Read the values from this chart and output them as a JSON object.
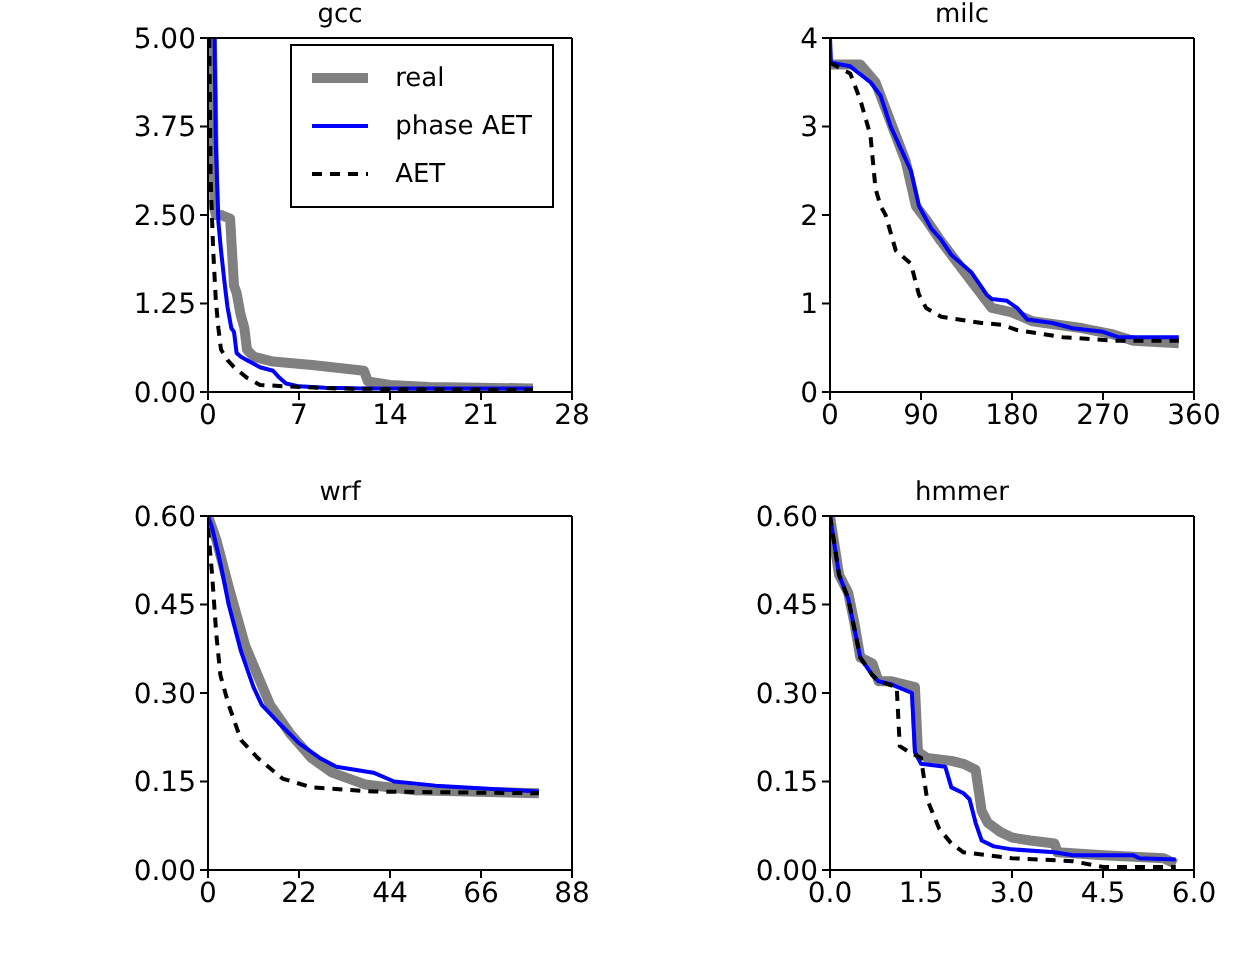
{
  "chart_data": [
    {
      "type": "line",
      "title": "gcc",
      "xlim": [
        0,
        28
      ],
      "xticks": [
        0,
        7,
        14,
        21,
        28
      ],
      "ylim": [
        0,
        5
      ],
      "yticks": [
        {
          "value": 0,
          "label": "0.00"
        },
        {
          "value": 1.25,
          "label": "1.25"
        },
        {
          "value": 2.5,
          "label": "2.50"
        },
        {
          "value": 3.75,
          "label": "3.75"
        },
        {
          "value": 5,
          "label": "5.00"
        }
      ],
      "legend": "top right",
      "marker": "none",
      "series": [
        {
          "name": "real",
          "color": "#808080",
          "line_style": "solid",
          "x": [
            0.3,
            0.5,
            0.6,
            1.0,
            1.7,
            2.0,
            2.2,
            2.5,
            2.8,
            3.0,
            3.5,
            5,
            8,
            12,
            12.3,
            14,
            17,
            25
          ],
          "values": [
            5,
            2.6,
            2.5,
            2.5,
            2.45,
            1.5,
            1.4,
            1.1,
            0.9,
            0.6,
            0.5,
            0.43,
            0.38,
            0.3,
            0.15,
            0.1,
            0.07,
            0.05
          ]
        },
        {
          "name": "phase AET",
          "color": "#0000ff",
          "line_style": "solid",
          "x": [
            0.5,
            0.6,
            0.8,
            1.0,
            1.3,
            1.5,
            1.8,
            2.0,
            2.2,
            2.5,
            3.0,
            4.0,
            5.0,
            5.5,
            6.0,
            7,
            9,
            12,
            25
          ],
          "values": [
            5,
            3.5,
            2.4,
            2.0,
            1.5,
            1.2,
            0.9,
            0.85,
            0.55,
            0.5,
            0.45,
            0.35,
            0.3,
            0.2,
            0.12,
            0.08,
            0.06,
            0.05,
            0.05
          ]
        },
        {
          "name": "AET",
          "color": "#000000",
          "line_style": "dashed",
          "x": [
            0.1,
            0.2,
            0.4,
            0.6,
            0.8,
            1.0,
            1.5,
            2,
            3,
            4,
            6,
            10,
            15,
            25
          ],
          "values": [
            5,
            3.0,
            2.0,
            1.3,
            0.9,
            0.6,
            0.45,
            0.35,
            0.2,
            0.1,
            0.08,
            0.05,
            0.04,
            0.03
          ]
        }
      ]
    },
    {
      "type": "line",
      "title": "milc",
      "xlim": [
        0,
        360
      ],
      "xticks": [
        0,
        90,
        180,
        270,
        360
      ],
      "ylim": [
        0,
        4
      ],
      "yticks": [
        0,
        1,
        2,
        3,
        4
      ],
      "marker": "none",
      "series": [
        {
          "color": "#808080",
          "line_style": "solid",
          "x": [
            0,
            30,
            45,
            55,
            65,
            75,
            85,
            95,
            110,
            130,
            150,
            160,
            180,
            200,
            250,
            280,
            300,
            345
          ],
          "values": [
            3.7,
            3.7,
            3.5,
            3.2,
            2.9,
            2.6,
            2.1,
            1.95,
            1.7,
            1.4,
            1.1,
            0.95,
            0.9,
            0.8,
            0.72,
            0.65,
            0.58,
            0.55
          ]
        },
        {
          "color": "#0000ff",
          "line_style": "solid",
          "x": [
            0,
            1,
            20,
            40,
            50,
            60,
            70,
            80,
            88,
            100,
            110,
            120,
            140,
            155,
            160,
            175,
            185,
            195,
            220,
            240,
            270,
            285,
            345
          ],
          "values": [
            4,
            3.72,
            3.68,
            3.5,
            3.35,
            3.0,
            2.75,
            2.5,
            2.1,
            1.85,
            1.72,
            1.55,
            1.35,
            1.1,
            1.05,
            1.03,
            0.95,
            0.82,
            0.78,
            0.72,
            0.68,
            0.62,
            0.62
          ]
        },
        {
          "color": "#000000",
          "line_style": "dashed",
          "x": [
            0,
            20,
            30,
            40,
            45,
            50,
            55,
            65,
            80,
            88,
            95,
            110,
            150,
            170,
            185,
            230,
            280,
            345
          ],
          "values": [
            3.72,
            3.6,
            3.3,
            2.9,
            2.3,
            2.1,
            2.0,
            1.6,
            1.45,
            1.1,
            0.95,
            0.85,
            0.78,
            0.76,
            0.7,
            0.62,
            0.58,
            0.58
          ]
        }
      ]
    },
    {
      "type": "line",
      "title": "wrf",
      "xlim": [
        0,
        88
      ],
      "xticks": [
        0,
        22,
        44,
        66,
        88
      ],
      "ylim": [
        0,
        0.6
      ],
      "yticks": [
        {
          "value": 0,
          "label": "0.00"
        },
        {
          "value": 0.15,
          "label": "0.15"
        },
        {
          "value": 0.3,
          "label": "0.30"
        },
        {
          "value": 0.45,
          "label": "0.45"
        },
        {
          "value": 0.6,
          "label": "0.60"
        }
      ],
      "marker": "none",
      "series": [
        {
          "color": "#808080",
          "line_style": "solid",
          "x": [
            0,
            2,
            5,
            9,
            12,
            15,
            20,
            25,
            30,
            38,
            50,
            80
          ],
          "values": [
            0.6,
            0.56,
            0.48,
            0.38,
            0.33,
            0.28,
            0.23,
            0.19,
            0.165,
            0.145,
            0.135,
            0.13
          ]
        },
        {
          "color": "#0000ff",
          "line_style": "solid",
          "x": [
            0,
            1,
            3,
            5,
            8,
            11,
            13,
            17,
            22,
            27,
            31,
            40,
            45,
            55,
            80
          ],
          "values": [
            0.6,
            0.58,
            0.52,
            0.45,
            0.37,
            0.31,
            0.28,
            0.25,
            0.215,
            0.19,
            0.175,
            0.165,
            0.15,
            0.143,
            0.133
          ]
        },
        {
          "color": "#000000",
          "line_style": "dashed",
          "x": [
            0,
            1,
            2,
            3,
            5,
            8,
            12,
            18,
            25,
            40,
            80
          ],
          "values": [
            0.58,
            0.5,
            0.4,
            0.33,
            0.28,
            0.22,
            0.19,
            0.155,
            0.14,
            0.133,
            0.13
          ]
        }
      ]
    },
    {
      "type": "line",
      "title": "hmmer",
      "xlim": [
        0,
        6
      ],
      "xticks": [
        {
          "value": 0,
          "label": "0.0"
        },
        {
          "value": 1.5,
          "label": "1.5"
        },
        {
          "value": 3,
          "label": "3.0"
        },
        {
          "value": 4.5,
          "label": "4.5"
        },
        {
          "value": 6,
          "label": "6.0"
        }
      ],
      "ylim": [
        0,
        0.6
      ],
      "yticks": [
        {
          "value": 0,
          "label": "0.00"
        },
        {
          "value": 0.15,
          "label": "0.15"
        },
        {
          "value": 0.3,
          "label": "0.30"
        },
        {
          "value": 0.45,
          "label": "0.45"
        },
        {
          "value": 0.6,
          "label": "0.60"
        }
      ],
      "marker": "none",
      "series": [
        {
          "color": "#808080",
          "line_style": "solid",
          "x": [
            0,
            0.15,
            0.3,
            0.4,
            0.5,
            0.7,
            0.8,
            1.0,
            1.4,
            1.45,
            1.6,
            2.0,
            2.2,
            2.4,
            2.5,
            2.6,
            2.8,
            3.0,
            3.3,
            3.7,
            3.75,
            4.5,
            5.5,
            5.7
          ],
          "values": [
            0.6,
            0.5,
            0.47,
            0.42,
            0.36,
            0.35,
            0.32,
            0.32,
            0.31,
            0.2,
            0.19,
            0.185,
            0.18,
            0.17,
            0.1,
            0.08,
            0.065,
            0.055,
            0.05,
            0.045,
            0.03,
            0.025,
            0.02,
            0.01
          ]
        },
        {
          "color": "#0000ff",
          "line_style": "solid",
          "x": [
            0,
            0.15,
            0.3,
            0.4,
            0.5,
            0.7,
            0.8,
            1.0,
            1.35,
            1.4,
            1.5,
            1.9,
            2.0,
            2.2,
            2.3,
            2.4,
            2.5,
            2.7,
            3.0,
            3.7,
            4.0,
            5.0,
            5.1,
            5.7
          ],
          "values": [
            0.6,
            0.5,
            0.46,
            0.41,
            0.36,
            0.33,
            0.32,
            0.315,
            0.3,
            0.2,
            0.18,
            0.175,
            0.14,
            0.13,
            0.12,
            0.08,
            0.05,
            0.04,
            0.035,
            0.03,
            0.025,
            0.025,
            0.02,
            0.018
          ]
        },
        {
          "color": "#000000",
          "line_style": "dashed",
          "x": [
            0,
            0.15,
            0.3,
            0.4,
            0.5,
            0.7,
            0.8,
            1.1,
            1.15,
            1.3,
            1.5,
            1.6,
            1.8,
            2.0,
            2.2,
            3.0,
            4.0,
            4.5,
            5.7
          ],
          "values": [
            0.6,
            0.5,
            0.46,
            0.41,
            0.36,
            0.33,
            0.32,
            0.31,
            0.21,
            0.2,
            0.19,
            0.12,
            0.07,
            0.045,
            0.03,
            0.02,
            0.015,
            0.005,
            0.005
          ]
        }
      ]
    }
  ]
}
